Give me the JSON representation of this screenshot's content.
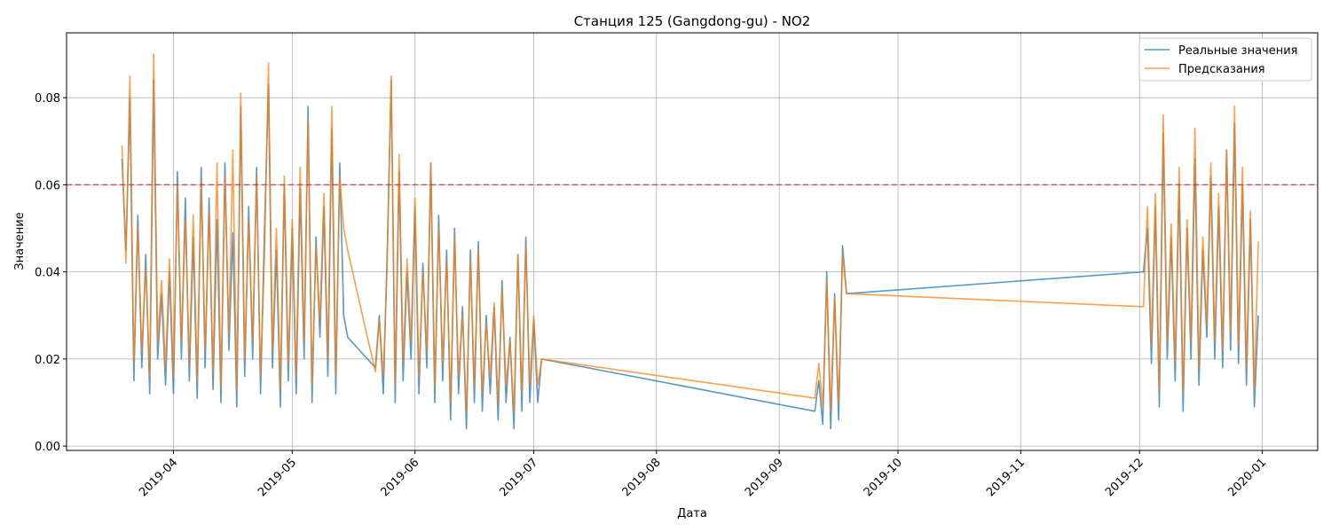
{
  "chart_data": {
    "type": "line",
    "title": "Станция 125 (Gangdong-gu) - NO2",
    "x_label": "Дата",
    "y_label": "Значение",
    "x": [
      "2019-03-19",
      "2019-03-20",
      "2019-03-21",
      "2019-03-22",
      "2019-03-23",
      "2019-03-24",
      "2019-03-25",
      "2019-03-26",
      "2019-03-27",
      "2019-03-28",
      "2019-03-29",
      "2019-03-30",
      "2019-03-31",
      "2019-04-01",
      "2019-04-02",
      "2019-04-03",
      "2019-04-04",
      "2019-04-05",
      "2019-04-06",
      "2019-04-07",
      "2019-04-08",
      "2019-04-09",
      "2019-04-10",
      "2019-04-11",
      "2019-04-12",
      "2019-04-13",
      "2019-04-14",
      "2019-04-15",
      "2019-04-16",
      "2019-04-17",
      "2019-04-18",
      "2019-04-19",
      "2019-04-20",
      "2019-04-21",
      "2019-04-22",
      "2019-04-23",
      "2019-04-24",
      "2019-04-25",
      "2019-04-26",
      "2019-04-27",
      "2019-04-28",
      "2019-04-29",
      "2019-04-30",
      "2019-05-01",
      "2019-05-02",
      "2019-05-03",
      "2019-05-04",
      "2019-05-05",
      "2019-05-06",
      "2019-05-07",
      "2019-05-08",
      "2019-05-09",
      "2019-05-10",
      "2019-05-11",
      "2019-05-12",
      "2019-05-13",
      "2019-05-14",
      "2019-05-15",
      "2019-05-22",
      "2019-05-23",
      "2019-05-24",
      "2019-05-25",
      "2019-05-26",
      "2019-05-27",
      "2019-05-28",
      "2019-05-29",
      "2019-05-30",
      "2019-05-31",
      "2019-06-01",
      "2019-06-02",
      "2019-06-03",
      "2019-06-04",
      "2019-06-05",
      "2019-06-06",
      "2019-06-07",
      "2019-06-08",
      "2019-06-09",
      "2019-06-10",
      "2019-06-11",
      "2019-06-12",
      "2019-06-13",
      "2019-06-14",
      "2019-06-15",
      "2019-06-16",
      "2019-06-17",
      "2019-06-18",
      "2019-06-19",
      "2019-06-20",
      "2019-06-21",
      "2019-06-22",
      "2019-06-23",
      "2019-06-24",
      "2019-06-25",
      "2019-06-26",
      "2019-06-27",
      "2019-06-28",
      "2019-06-29",
      "2019-06-30",
      "2019-07-01",
      "2019-07-02",
      "2019-07-03",
      "2019-09-10",
      "2019-09-11",
      "2019-09-12",
      "2019-09-13",
      "2019-09-14",
      "2019-09-15",
      "2019-09-16",
      "2019-09-17",
      "2019-09-18",
      "2019-12-02",
      "2019-12-03",
      "2019-12-04",
      "2019-12-05",
      "2019-12-06",
      "2019-12-07",
      "2019-12-08",
      "2019-12-09",
      "2019-12-10",
      "2019-12-11",
      "2019-12-12",
      "2019-12-13",
      "2019-12-14",
      "2019-12-15",
      "2019-12-16",
      "2019-12-17",
      "2019-12-18",
      "2019-12-19",
      "2019-12-20",
      "2019-12-21",
      "2019-12-22",
      "2019-12-23",
      "2019-12-24",
      "2019-12-25",
      "2019-12-26",
      "2019-12-27",
      "2019-12-28",
      "2019-12-29",
      "2019-12-30",
      "2019-12-31"
    ],
    "series": [
      {
        "name": "Реальные значения",
        "color": "#1f77b4",
        "values": [
          0.066,
          0.045,
          0.08,
          0.015,
          0.053,
          0.018,
          0.044,
          0.012,
          0.084,
          0.02,
          0.035,
          0.014,
          0.04,
          0.012,
          0.063,
          0.02,
          0.057,
          0.015,
          0.048,
          0.011,
          0.064,
          0.018,
          0.057,
          0.013,
          0.052,
          0.01,
          0.065,
          0.022,
          0.049,
          0.009,
          0.078,
          0.016,
          0.055,
          0.02,
          0.064,
          0.012,
          0.05,
          0.083,
          0.018,
          0.045,
          0.009,
          0.06,
          0.015,
          0.05,
          0.012,
          0.059,
          0.02,
          0.078,
          0.01,
          0.048,
          0.025,
          0.055,
          0.016,
          0.073,
          0.012,
          0.065,
          0.03,
          0.025,
          0.018,
          0.03,
          0.012,
          0.045,
          0.084,
          0.01,
          0.063,
          0.015,
          0.04,
          0.02,
          0.055,
          0.012,
          0.042,
          0.018,
          0.065,
          0.01,
          0.053,
          0.015,
          0.045,
          0.006,
          0.05,
          0.012,
          0.032,
          0.004,
          0.045,
          0.01,
          0.047,
          0.008,
          0.03,
          0.012,
          0.032,
          0.006,
          0.038,
          0.01,
          0.025,
          0.004,
          0.044,
          0.008,
          0.048,
          0.01,
          0.029,
          0.01,
          0.02,
          0.008,
          0.015,
          0.005,
          0.04,
          0.004,
          0.035,
          0.006,
          0.046,
          0.035,
          0.04,
          0.05,
          0.019,
          0.055,
          0.009,
          0.072,
          0.02,
          0.048,
          0.015,
          0.06,
          0.008,
          0.05,
          0.02,
          0.066,
          0.014,
          0.045,
          0.025,
          0.062,
          0.02,
          0.055,
          0.018,
          0.068,
          0.022,
          0.074,
          0.019,
          0.06,
          0.014,
          0.052,
          0.009,
          0.03
        ]
      },
      {
        "name": "Предсказания",
        "color": "#ff7f0e",
        "values": [
          0.069,
          0.042,
          0.085,
          0.019,
          0.05,
          0.022,
          0.041,
          0.016,
          0.09,
          0.024,
          0.038,
          0.018,
          0.043,
          0.016,
          0.06,
          0.024,
          0.052,
          0.019,
          0.053,
          0.015,
          0.061,
          0.022,
          0.054,
          0.017,
          0.065,
          0.014,
          0.062,
          0.026,
          0.068,
          0.013,
          0.081,
          0.02,
          0.052,
          0.024,
          0.062,
          0.016,
          0.044,
          0.088,
          0.022,
          0.05,
          0.013,
          0.062,
          0.019,
          0.052,
          0.016,
          0.064,
          0.024,
          0.075,
          0.014,
          0.046,
          0.029,
          0.058,
          0.02,
          0.078,
          0.016,
          0.062,
          0.05,
          0.045,
          0.017,
          0.029,
          0.016,
          0.042,
          0.085,
          0.014,
          0.067,
          0.019,
          0.043,
          0.024,
          0.057,
          0.016,
          0.04,
          0.022,
          0.065,
          0.014,
          0.05,
          0.019,
          0.043,
          0.01,
          0.048,
          0.016,
          0.03,
          0.008,
          0.043,
          0.014,
          0.045,
          0.012,
          0.028,
          0.016,
          0.033,
          0.01,
          0.036,
          0.014,
          0.024,
          0.008,
          0.044,
          0.012,
          0.046,
          0.014,
          0.03,
          0.014,
          0.02,
          0.011,
          0.019,
          0.009,
          0.038,
          0.008,
          0.034,
          0.01,
          0.044,
          0.035,
          0.032,
          0.055,
          0.023,
          0.058,
          0.013,
          0.076,
          0.024,
          0.051,
          0.019,
          0.064,
          0.012,
          0.052,
          0.024,
          0.073,
          0.018,
          0.048,
          0.028,
          0.065,
          0.024,
          0.058,
          0.022,
          0.068,
          0.026,
          0.078,
          0.023,
          0.064,
          0.018,
          0.054,
          0.013,
          0.047
        ]
      }
    ],
    "threshold": 0.06,
    "threshold_color": "#d62728",
    "xlim": [
      "2019-03-05",
      "2020-01-15"
    ],
    "xticks": [
      {
        "value": "2019-04-01",
        "label": "2019-04"
      },
      {
        "value": "2019-05-01",
        "label": "2019-05"
      },
      {
        "value": "2019-06-01",
        "label": "2019-06"
      },
      {
        "value": "2019-07-01",
        "label": "2019-07"
      },
      {
        "value": "2019-08-01",
        "label": "2019-08"
      },
      {
        "value": "2019-09-01",
        "label": "2019-09"
      },
      {
        "value": "2019-10-01",
        "label": "2019-10"
      },
      {
        "value": "2019-11-01",
        "label": "2019-11"
      },
      {
        "value": "2019-12-01",
        "label": "2019-12"
      },
      {
        "value": "2020-01-01",
        "label": "2020-01"
      }
    ],
    "ylim": [
      -0.001,
      0.0949
    ],
    "yticks": [
      {
        "value": 0,
        "label": "0.00"
      },
      {
        "value": 0.02,
        "label": "0.02"
      },
      {
        "value": 0.04,
        "label": "0.04"
      },
      {
        "value": 0.06,
        "label": "0.06"
      },
      {
        "value": 0.08,
        "label": "0.08"
      }
    ],
    "grid": true,
    "legend": "upper right"
  }
}
